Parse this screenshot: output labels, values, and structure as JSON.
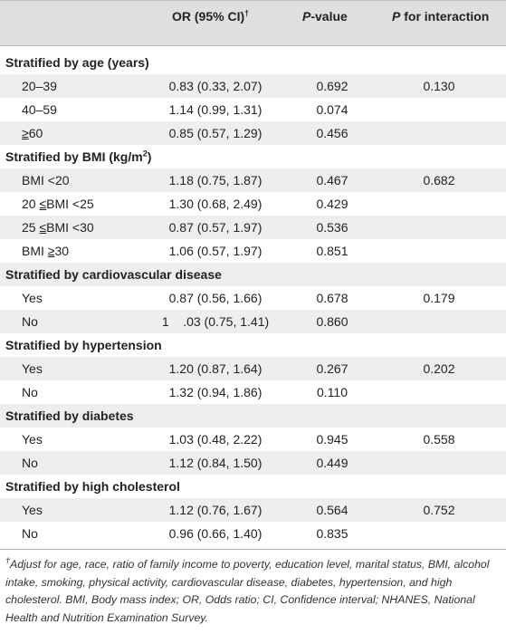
{
  "header": {
    "or_label": "OR (95% CI)",
    "dagger": "†",
    "p_value_label_italic": "P",
    "p_value_label_rest": "-value",
    "p_interaction_italic": "P",
    "p_interaction_rest": " for interaction"
  },
  "sections": {
    "age": {
      "title": "Stratified by age (years)",
      "rows": [
        {
          "label": "20–39",
          "or": "0.83 (0.33, 2.07)",
          "p": "0.692",
          "p_int": "0.130"
        },
        {
          "label": "40–59",
          "or": "1.14 (0.99, 1.31)",
          "p": "0.074",
          "p_int": ""
        },
        {
          "label_ge": "≥",
          "label_rest": "60",
          "or": "0.85 (0.57, 1.29)",
          "p": "0.456",
          "p_int": ""
        }
      ]
    },
    "bmi": {
      "title_pre": "Stratified by BMI (kg/m",
      "title_sup": "2",
      "title_post": ")",
      "rows": [
        {
          "label": "BMI <20",
          "or": "1.18 (0.75, 1.87)",
          "p": "0.467",
          "p_int": "0.682"
        },
        {
          "label_a": "20 ",
          "label_le": "≤",
          "label_b": "BMI <25",
          "or": "1.30 (0.68, 2.49)",
          "p": "0.429",
          "p_int": ""
        },
        {
          "label_a": "25 ",
          "label_le": "≤",
          "label_b": "BMI <30",
          "or": "0.87 (0.57, 1.97)",
          "p": "0.536",
          "p_int": ""
        },
        {
          "label_a": "BMI ",
          "label_ge": "≥",
          "label_b": "30",
          "or": "1.06 (0.57, 1.97)",
          "p": "0.851",
          "p_int": ""
        }
      ]
    },
    "cvd": {
      "title": "Stratified by cardiovascular disease",
      "rows": [
        {
          "label": "Yes",
          "or": "0.87 (0.56, 1.66)",
          "p": "0.678",
          "p_int": "0.179"
        },
        {
          "label": "No",
          "or": "1    .03 (0.75, 1.41)",
          "p": "0.860",
          "p_int": ""
        }
      ]
    },
    "hypertension": {
      "title": "Stratified by hypertension",
      "rows": [
        {
          "label": "Yes",
          "or": "1.20 (0.87, 1.64)",
          "p": "0.267",
          "p_int": "0.202"
        },
        {
          "label": "No",
          "or": "1.32 (0.94, 1.86)",
          "p": "0.110",
          "p_int": ""
        }
      ]
    },
    "diabetes": {
      "title": "Stratified by diabetes",
      "rows": [
        {
          "label": "Yes",
          "or": "1.03 (0.48, 2.22)",
          "p": "0.945",
          "p_int": "0.558"
        },
        {
          "label": "No",
          "or": "1.12 (0.84, 1.50)",
          "p": "0.449",
          "p_int": ""
        }
      ]
    },
    "cholesterol": {
      "title": "Stratified by high cholesterol",
      "rows": [
        {
          "label": "Yes",
          "or": "1.12 (0.76, 1.67)",
          "p": "0.564",
          "p_int": "0.752"
        },
        {
          "label": "No",
          "or": "0.96 (0.66, 1.40)",
          "p": "0.835",
          "p_int": ""
        }
      ]
    }
  },
  "footnote": {
    "marker": "†",
    "text": "Adjust for age, race, ratio of family income to poverty, education level, marital status, BMI, alcohol intake, smoking, physical activity, cardiovascular disease, diabetes, hypertension, and high cholesterol. BMI, Body mass index; OR, Odds ratio; CI, Confidence interval; NHANES, National Health and Nutrition Examination Survey."
  },
  "colors": {
    "header_band": "#dfdfdf",
    "row_band": "#eeeeee",
    "rule": "#b5b5b5"
  }
}
